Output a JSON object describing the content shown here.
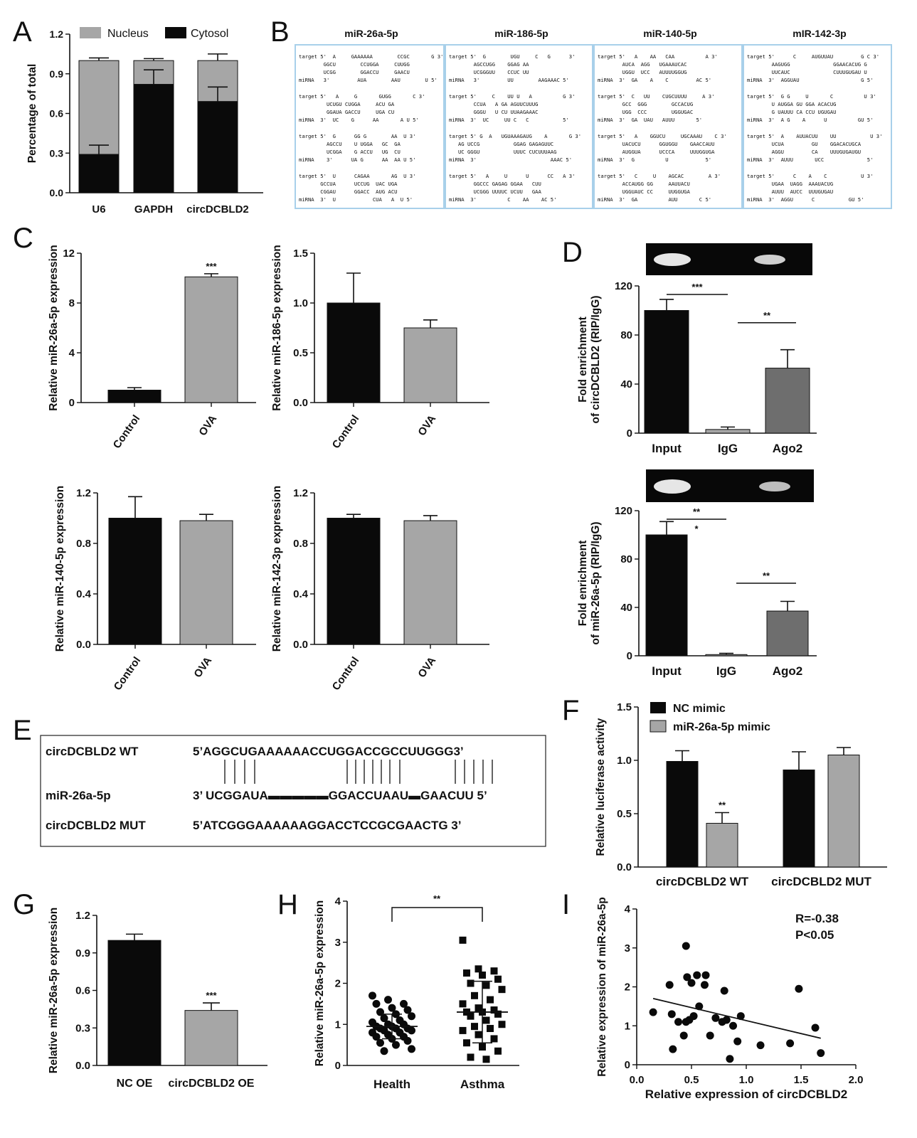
{
  "colors": {
    "black": "#0a0a0a",
    "gray": "#a6a6a6",
    "darkgray": "#6e6e6e",
    "box_border": "#a8d0ea"
  },
  "panel_letters": {
    "A": "A",
    "B": "B",
    "C": "C",
    "D": "D",
    "E": "E",
    "F": "F",
    "G": "G",
    "H": "H",
    "I": "I"
  },
  "panel_b": {
    "titles": [
      "miR-26a-5p",
      "miR-186-5p",
      "miR-140-5p",
      "mIR-142-3p"
    ],
    "boxes": [
      [
        [
          "target 5'  A     GAAAAAA        CCGC       G 3'",
          "        GGCU        CCUGGA     CUUGG",
          "        UCGG        GGACCU     GAACU",
          "miRNA   3'         AUA        AAU        U 5'"
        ],
        [
          "target 5'   A     G       GUGG       C 3'",
          "         UCUGU CUGGA     ACU GA",
          "         GGAUA GACCU     UGA CU",
          "miRNA  3'  UC    G      AA       A U 5'"
        ],
        [
          "target 5'  G      GG G        AA  U 3'",
          "         AGCCU    U UGGA   GC  GA",
          "         UCGGA    G ACCU   UG  CU",
          "miRNA    3'      UA G      AA  AA U 5'"
        ],
        [
          "target 5'  U      CAGAA       AG  U 3'",
          "       GCCUA      UCCUG  UAC UGA",
          "       CGGAU      GGACC  AUG ACU",
          "miRNA  3'  U            CUA   A  U 5'"
        ]
      ],
      [
        [
          "target 5'  G        UGU     C   G      3'",
          "        AGCCUGG    GGAG AA",
          "        UCGGGUU    CCUC UU",
          "miRNA   3'         UU        AAGAAAC 5'"
        ],
        [
          "target 5'     C    UU U   A          G 3'",
          "        CCUA   A GA AGUUCUUUG",
          "        GGGU   U CU UUAAGAAAC",
          "miRNA  3'  UC     UU C   C           5'"
        ],
        [
          "target 5' G  A   UGUAAAGAUG    A       G 3'",
          "   AG UCCG           GGAG GAGAGUUC",
          "   UC GGGU           UUUC CUCUUUAAG",
          "miRNA  3'                        AAAC 5'"
        ],
        [
          "target 5'   A     U      U      CC   A 3'",
          "        GGCCC GAGAG GGAA   CUU",
          "        UCGGG UUUUC UCUU   GAA",
          "miRNA  3'          C    AA    AC 5'"
        ]
      ],
      [
        [
          "target 5'   A    AA   CAA          A 3'",
          "        AUCA  AGG   UGAAAUCAC",
          "        UGGU  UCC   AUUUUGGUG",
          "miRNA  3'  GA    A    C         AC 5'"
        ],
        [
          "target 5'  C   UU    CUGCUUUU     A 3'",
          "        GCC  GGG        GCCACUG",
          "        UGG  CCC        UGGUGAC",
          "miRNA  3'  GA  UAU   AUUU       5'"
        ],
        [
          "target 5'   A    GGUCU     UGCAAAU    C 3'",
          "        UACUCU      GGUGGU    GAACCAUU",
          "        AUGGUA      UCCCA     UUUGGUGA",
          "miRNA  3'  G          U            5'"
        ],
        [
          "target 5'   C     U    AGCAC        A 3'",
          "        ACCAUGG GG     AAUUACU",
          "        UGGUAUC CC     UUGGUGA",
          "miRNA  3'  GA          AUU       C 5'"
        ]
      ],
      [
        [
          "target 5'      C     AUGUUAU         G C 3'",
          "        AAGUGG              GGAACACUG G",
          "        UUCAUC              CUUUGUGAU U",
          "miRNA  3'  AGGUAU                    G 5'"
        ],
        [
          "target 5'  G G     U       C          U 3'",
          "        U AUGGA GU GGA ACACUG",
          "        G UAUUU CA CCU UGUGAU",
          "miRNA  3'  A G    A      U          GU 5'"
        ],
        [
          "target 5'  A    AUUACUU    UU           U 3'",
          "        UCUA         GU    GGACACUGCA",
          "        AGGU         CA    UUUGUGAUGU",
          "miRNA  3'  AUUU       UCC              5'"
        ],
        [
          "target 5'      C    A    C           U 3'",
          "        UGAA  UAGG  AAAUACUG",
          "        AUUU  AUCC  UUUGUGAU",
          "miRNA  3'  AGGU      C           GU 5'"
        ]
      ]
    ]
  },
  "panel_e": {
    "wt_label": "circDCBLD2 WT",
    "wt_seq": "5’AGGCUGAAAAAACCUGGACCGCCUUGGG3’",
    "mir_label": "miR-26a-5p",
    "mir_seq": "3’   UCGGAUA▬▬▬▬▬GGACCUAAU▬GAACUU   5’",
    "mut_label": "circDCBLD2  MUT",
    "mut_seq": "5’ATCGGGAAAAAAGGACCTCCGCGAACTG 3’"
  },
  "chart_data": [
    {
      "id": "A",
      "type": "bar",
      "stacked": true,
      "categories": [
        "U6",
        "GAPDH",
        "circDCBLD2"
      ],
      "series": [
        {
          "name": "Nucleus",
          "values": [
            0.71,
            0.18,
            0.31
          ],
          "color": "#a6a6a6"
        },
        {
          "name": "Cytosol",
          "values": [
            0.29,
            0.82,
            0.69
          ],
          "color": "#0a0a0a"
        }
      ],
      "errors_cytosol": [
        0.07,
        0.11,
        0.11
      ],
      "errors_top": [
        0.02,
        0.015,
        0.05
      ],
      "title": "",
      "xlabel": "",
      "ylabel": "Percentage of total",
      "ylim": [
        0,
        1.2
      ],
      "yticks": [
        "0.0",
        "0.3",
        "0.6",
        "0.9",
        "1.2"
      ],
      "legend": "top"
    },
    {
      "id": "C1",
      "type": "bar",
      "categories": [
        "Control",
        "OVA"
      ],
      "values": [
        1.0,
        10.1
      ],
      "errors": [
        0.2,
        0.25
      ],
      "colors": [
        "#0a0a0a",
        "#a6a6a6"
      ],
      "ylabel": "Relative miR-26a-5p expression",
      "ylim": [
        0,
        12
      ],
      "yticks": [
        "0",
        "4",
        "8",
        "12"
      ],
      "sig": [
        "",
        "***"
      ]
    },
    {
      "id": "C2",
      "type": "bar",
      "categories": [
        "Control",
        "OVA"
      ],
      "values": [
        1.0,
        0.75
      ],
      "errors": [
        0.3,
        0.08
      ],
      "colors": [
        "#0a0a0a",
        "#a6a6a6"
      ],
      "ylabel": "Relative miR-186-5p expression",
      "ylim": [
        0,
        1.5
      ],
      "yticks": [
        "0.0",
        "0.5",
        "1.0",
        "1.5"
      ],
      "sig": [
        "",
        ""
      ]
    },
    {
      "id": "C3",
      "type": "bar",
      "categories": [
        "Control",
        "OVA"
      ],
      "values": [
        1.0,
        0.98
      ],
      "errors": [
        0.17,
        0.05
      ],
      "colors": [
        "#0a0a0a",
        "#a6a6a6"
      ],
      "ylabel": "Relative miR-140-5p expression",
      "ylim": [
        0,
        1.2
      ],
      "yticks": [
        "0.0",
        "0.4",
        "0.8",
        "1.2"
      ],
      "sig": [
        "",
        ""
      ]
    },
    {
      "id": "C4",
      "type": "bar",
      "categories": [
        "Control",
        "OVA"
      ],
      "values": [
        1.0,
        0.98
      ],
      "errors": [
        0.03,
        0.04
      ],
      "colors": [
        "#0a0a0a",
        "#a6a6a6"
      ],
      "ylabel": "Relative miR-142-3p expression",
      "ylim": [
        0,
        1.2
      ],
      "yticks": [
        "0.0",
        "0.4",
        "0.8",
        "1.2"
      ],
      "sig": [
        "",
        ""
      ]
    },
    {
      "id": "D1",
      "type": "bar",
      "categories": [
        "Input",
        "IgG",
        "Ago2"
      ],
      "values": [
        100,
        3,
        53
      ],
      "errors": [
        9,
        2,
        15
      ],
      "colors": [
        "#0a0a0a",
        "#a6a6a6",
        "#6e6e6e"
      ],
      "ylabel": "Fold enrichment\nof circDCBLD2 (RIP/IgG)",
      "ylim": [
        0,
        120
      ],
      "yticks": [
        "0",
        "40",
        "80",
        "120"
      ],
      "brackets": [
        {
          "from": 0,
          "to": 1,
          "label": "***",
          "level": 1
        },
        {
          "from": 1,
          "to": 2,
          "label": "**",
          "level": 0.75
        }
      ]
    },
    {
      "id": "D2",
      "type": "bar",
      "categories": [
        "Input",
        "IgG",
        "Ago2"
      ],
      "values": [
        100,
        1,
        37
      ],
      "errors": [
        11,
        1,
        8
      ],
      "colors": [
        "#0a0a0a",
        "#a6a6a6",
        "#6e6e6e"
      ],
      "ylabel": "Fold enrichment\nof miR-26a-5p (RIP/IgG)",
      "ylim": [
        0,
        120
      ],
      "yticks": [
        "0",
        "40",
        "80",
        "120"
      ],
      "brackets": [
        {
          "from": 0,
          "to": 1,
          "label": "**",
          "level": 1,
          "sub": "*"
        },
        {
          "from": 1,
          "to": 2,
          "label": "**",
          "level": 0.5
        }
      ]
    },
    {
      "id": "F",
      "type": "bar",
      "categories": [
        "circDCBLD2 WT",
        "circDCBLD2 MUT"
      ],
      "series": [
        {
          "name": "NC mimic",
          "values": [
            0.99,
            0.91
          ],
          "errors": [
            0.1,
            0.17
          ],
          "color": "#0a0a0a"
        },
        {
          "name": "miR-26a-5p mimic",
          "values": [
            0.41,
            1.05
          ],
          "errors": [
            0.1,
            0.07
          ],
          "color": "#a6a6a6"
        }
      ],
      "sig": [
        [
          "",
          "**"
        ],
        [
          "",
          ""
        ]
      ],
      "ylabel": "Relative luciferase activity",
      "ylim": [
        0,
        1.5
      ],
      "yticks": [
        "0.0",
        "0.5",
        "1.0",
        "1.5"
      ],
      "legend": "top-left"
    },
    {
      "id": "G",
      "type": "bar",
      "categories": [
        "NC OE",
        "circDCBLD2 OE"
      ],
      "values": [
        1.0,
        0.44
      ],
      "errors": [
        0.05,
        0.06
      ],
      "colors": [
        "#0a0a0a",
        "#a6a6a6"
      ],
      "ylabel": "Relative miR-26a-5p expression",
      "ylim": [
        0,
        1.2
      ],
      "yticks": [
        "0.0",
        "0.3",
        "0.6",
        "0.9",
        "1.2"
      ],
      "sig": [
        "",
        "***"
      ]
    },
    {
      "id": "H",
      "type": "scatter",
      "categories": [
        "Health",
        "Asthma"
      ],
      "series": [
        {
          "name": "Health",
          "marker": "circle",
          "mean": 0.95,
          "sd": 0.3,
          "values": [
            1.7,
            1.6,
            1.5,
            1.5,
            1.4,
            1.35,
            1.3,
            1.25,
            1.2,
            1.15,
            1.1,
            1.05,
            1.0,
            1.0,
            0.95,
            0.95,
            0.9,
            0.9,
            0.9,
            0.85,
            0.85,
            0.8,
            0.8,
            0.75,
            0.7,
            0.7,
            0.65,
            0.6,
            0.55,
            0.5,
            0.4,
            0.35
          ]
        },
        {
          "name": "Asthma",
          "marker": "square",
          "mean": 1.3,
          "sd": 0.75,
          "values": [
            3.05,
            2.35,
            2.3,
            2.25,
            2.2,
            2.1,
            2.0,
            1.95,
            1.85,
            1.7,
            1.6,
            1.5,
            1.4,
            1.35,
            1.3,
            1.3,
            1.25,
            1.2,
            1.1,
            1.0,
            0.95,
            0.9,
            0.85,
            0.75,
            0.65,
            0.55,
            0.45,
            0.35,
            0.2,
            0.15
          ]
        }
      ],
      "ylabel": "Relative miR-26a-5p expression",
      "ylim": [
        0,
        4
      ],
      "yticks": [
        "0",
        "1",
        "2",
        "3",
        "4"
      ],
      "bracket": "**"
    },
    {
      "id": "I",
      "type": "scatter",
      "points": [
        [
          0.15,
          1.35
        ],
        [
          0.3,
          2.05
        ],
        [
          0.32,
          1.3
        ],
        [
          0.33,
          0.4
        ],
        [
          0.38,
          1.1
        ],
        [
          0.43,
          0.75
        ],
        [
          0.45,
          1.1
        ],
        [
          0.45,
          3.05
        ],
        [
          0.46,
          2.25
        ],
        [
          0.48,
          1.15
        ],
        [
          0.5,
          2.1
        ],
        [
          0.52,
          1.25
        ],
        [
          0.55,
          2.3
        ],
        [
          0.57,
          1.5
        ],
        [
          0.62,
          2.05
        ],
        [
          0.63,
          2.3
        ],
        [
          0.67,
          0.75
        ],
        [
          0.72,
          1.2
        ],
        [
          0.78,
          1.1
        ],
        [
          0.8,
          1.9
        ],
        [
          0.82,
          1.15
        ],
        [
          0.85,
          0.15
        ],
        [
          0.88,
          1.0
        ],
        [
          0.92,
          0.6
        ],
        [
          0.95,
          1.25
        ],
        [
          1.13,
          0.5
        ],
        [
          1.4,
          0.55
        ],
        [
          1.48,
          1.95
        ],
        [
          1.63,
          0.95
        ],
        [
          1.68,
          0.3
        ]
      ],
      "fit": [
        [
          0.15,
          1.7
        ],
        [
          1.68,
          0.68
        ]
      ],
      "annotations": [
        "R=-0.38",
        "P<0.05"
      ],
      "xlabel": "Relative expression of circDCBLD2",
      "ylabel": "Relative expression of miR-26a-5p",
      "xlim": [
        0,
        2
      ],
      "ylim": [
        0,
        4
      ],
      "xticks": [
        "0.0",
        "0.5",
        "1.0",
        "1.5",
        "2.0"
      ],
      "yticks": [
        "0",
        "1",
        "2",
        "3",
        "4"
      ]
    }
  ]
}
